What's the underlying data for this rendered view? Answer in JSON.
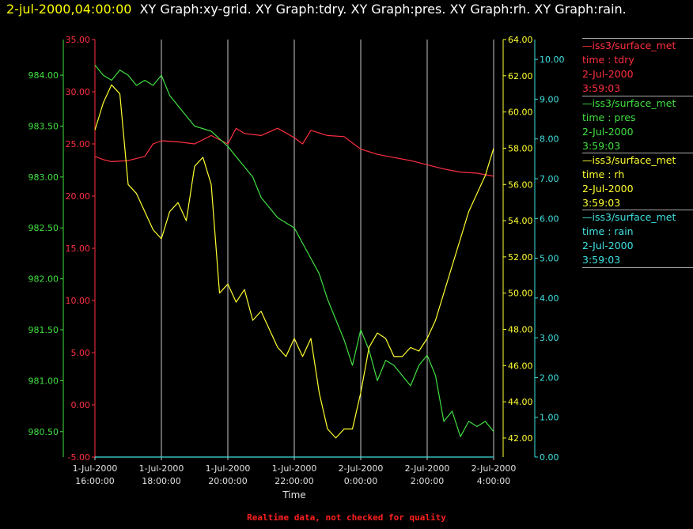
{
  "header": {
    "timestamp": "2-jul-2000,04:00:00",
    "graphs": "XY Graph:xy-grid.  XY Graph:tdry.  XY Graph:pres.  XY Graph:rh.  XY Graph:rain."
  },
  "footer": {
    "note": "Realtime data, not checked for quality"
  },
  "legend": [
    {
      "source": "iss3/surface_met",
      "var_label": "time : tdry",
      "date": "2-Jul-2000",
      "time": "3:59:03",
      "color": "#ff3040"
    },
    {
      "source": "iss3/surface_met",
      "var_label": "time : pres",
      "date": "2-Jul-2000",
      "time": "3:59:03",
      "color": "#40e040"
    },
    {
      "source": "iss3/surface_met",
      "var_label": "time : rh",
      "date": "2-Jul-2000",
      "time": "3:59:03",
      "color": "#ffff30"
    },
    {
      "source": "iss3/surface_met",
      "var_label": "time : rain",
      "date": "2-Jul-2000",
      "time": "3:59:03",
      "color": "#40e0e0"
    }
  ],
  "chart_data": {
    "type": "line",
    "xlabel": "Time",
    "x_ticks": [
      [
        "1-Jul-2000",
        "16:00:00"
      ],
      [
        "1-Jul-2000",
        "18:00:00"
      ],
      [
        "1-Jul-2000",
        "20:00:00"
      ],
      [
        "1-Jul-2000",
        "22:00:00"
      ],
      [
        "2-Jul-2000",
        "0:00:00"
      ],
      [
        "2-Jul-2000",
        "2:00:00"
      ],
      [
        "2-Jul-2000",
        "4:00:00"
      ]
    ],
    "x_range_hours": [
      16,
      28
    ],
    "grid": "vertical",
    "axes": {
      "tdry": {
        "color": "#ff3040",
        "range": [
          -5,
          35
        ],
        "ticks": [
          "-5.00",
          "0.00",
          "5.00",
          "10.00",
          "15.00",
          "20.00",
          "25.00",
          "30.00",
          "35.00"
        ]
      },
      "pres": {
        "color": "#40e040",
        "range": [
          980.25,
          984.35
        ],
        "ticks": [
          "980.50",
          "981.00",
          "981.50",
          "982.00",
          "982.50",
          "983.00",
          "983.50",
          "984.00"
        ]
      },
      "rh": {
        "color": "#ffff30",
        "range": [
          40.95,
          64
        ],
        "ticks": [
          "42.00",
          "44.00",
          "46.00",
          "48.00",
          "50.00",
          "52.00",
          "54.00",
          "56.00",
          "58.00",
          "60.00",
          "62.00",
          "64.00"
        ]
      },
      "rain": {
        "color": "#40e0e0",
        "range": [
          0,
          10.5
        ],
        "ticks": [
          "0.00",
          "1.00",
          "2.00",
          "3.00",
          "4.00",
          "5.00",
          "6.00",
          "7.00",
          "8.00",
          "9.00",
          "10.00"
        ]
      }
    },
    "series": [
      {
        "name": "tdry",
        "axis": "tdry",
        "x": [
          16,
          16.25,
          16.5,
          17,
          17.5,
          17.75,
          18,
          18.5,
          19,
          19.5,
          20,
          20.25,
          20.5,
          21,
          21.5,
          22,
          22.25,
          22.5,
          23,
          23.5,
          24,
          24.5,
          25,
          25.5,
          26,
          26.5,
          27,
          27.5,
          28
        ],
        "y": [
          23.8,
          23.5,
          23.3,
          23.4,
          23.8,
          25.0,
          25.3,
          25.2,
          25.0,
          25.8,
          25.0,
          26.5,
          26.0,
          25.8,
          26.5,
          25.6,
          25.0,
          26.3,
          25.8,
          25.7,
          24.5,
          24.0,
          23.7,
          23.4,
          23.0,
          22.6,
          22.3,
          22.2,
          21.9
        ]
      },
      {
        "name": "pres",
        "axis": "pres",
        "x": [
          16,
          16.25,
          16.5,
          16.75,
          17,
          17.25,
          17.5,
          17.75,
          18,
          18.25,
          18.5,
          18.75,
          19,
          19.5,
          20,
          20.25,
          20.5,
          20.75,
          21,
          21.5,
          22,
          22.25,
          22.5,
          22.75,
          23,
          23.25,
          23.5,
          23.75,
          24,
          24.25,
          24.5,
          24.75,
          25,
          25.25,
          25.5,
          25.75,
          26,
          26.25,
          26.5,
          26.75,
          27,
          27.25,
          27.5,
          27.75,
          28
        ],
        "y": [
          984.1,
          984.0,
          983.95,
          984.05,
          984.0,
          983.9,
          983.95,
          983.9,
          984.0,
          983.8,
          983.7,
          983.6,
          983.5,
          983.45,
          983.3,
          983.2,
          983.1,
          983.0,
          982.8,
          982.6,
          982.5,
          982.35,
          982.2,
          982.05,
          981.8,
          981.6,
          981.4,
          981.15,
          981.5,
          981.3,
          981.0,
          981.2,
          981.15,
          981.05,
          980.95,
          981.15,
          981.25,
          981.05,
          980.6,
          980.7,
          980.45,
          980.6,
          980.55,
          980.6,
          980.5
        ]
      },
      {
        "name": "rh",
        "axis": "rh",
        "x": [
          16,
          16.25,
          16.5,
          16.75,
          17,
          17.25,
          17.5,
          17.75,
          18,
          18.25,
          18.5,
          18.75,
          19,
          19.25,
          19.5,
          19.75,
          20,
          20.25,
          20.5,
          20.75,
          21,
          21.25,
          21.5,
          21.75,
          22,
          22.25,
          22.5,
          22.75,
          23,
          23.25,
          23.5,
          23.75,
          24,
          24.25,
          24.5,
          24.75,
          25,
          25.25,
          25.5,
          25.75,
          26,
          26.25,
          26.5,
          26.75,
          27,
          27.25,
          27.5,
          27.75,
          28
        ],
        "y": [
          59,
          60.5,
          61.5,
          61,
          56,
          55.5,
          54.5,
          53.5,
          53,
          54.5,
          55,
          54,
          57,
          57.5,
          56,
          50,
          50.5,
          49.5,
          50.2,
          48.5,
          49,
          48,
          47,
          46.5,
          47.5,
          46.5,
          47.5,
          44.5,
          42.5,
          42,
          42.5,
          42.5,
          44.5,
          47,
          47.8,
          47.5,
          46.5,
          46.5,
          47,
          46.8,
          47.5,
          48.5,
          50,
          51.5,
          53,
          54.5,
          55.5,
          56.5,
          58
        ]
      },
      {
        "name": "rain",
        "axis": "rain",
        "x": [
          16,
          28
        ],
        "y": [
          0,
          0
        ]
      }
    ]
  }
}
